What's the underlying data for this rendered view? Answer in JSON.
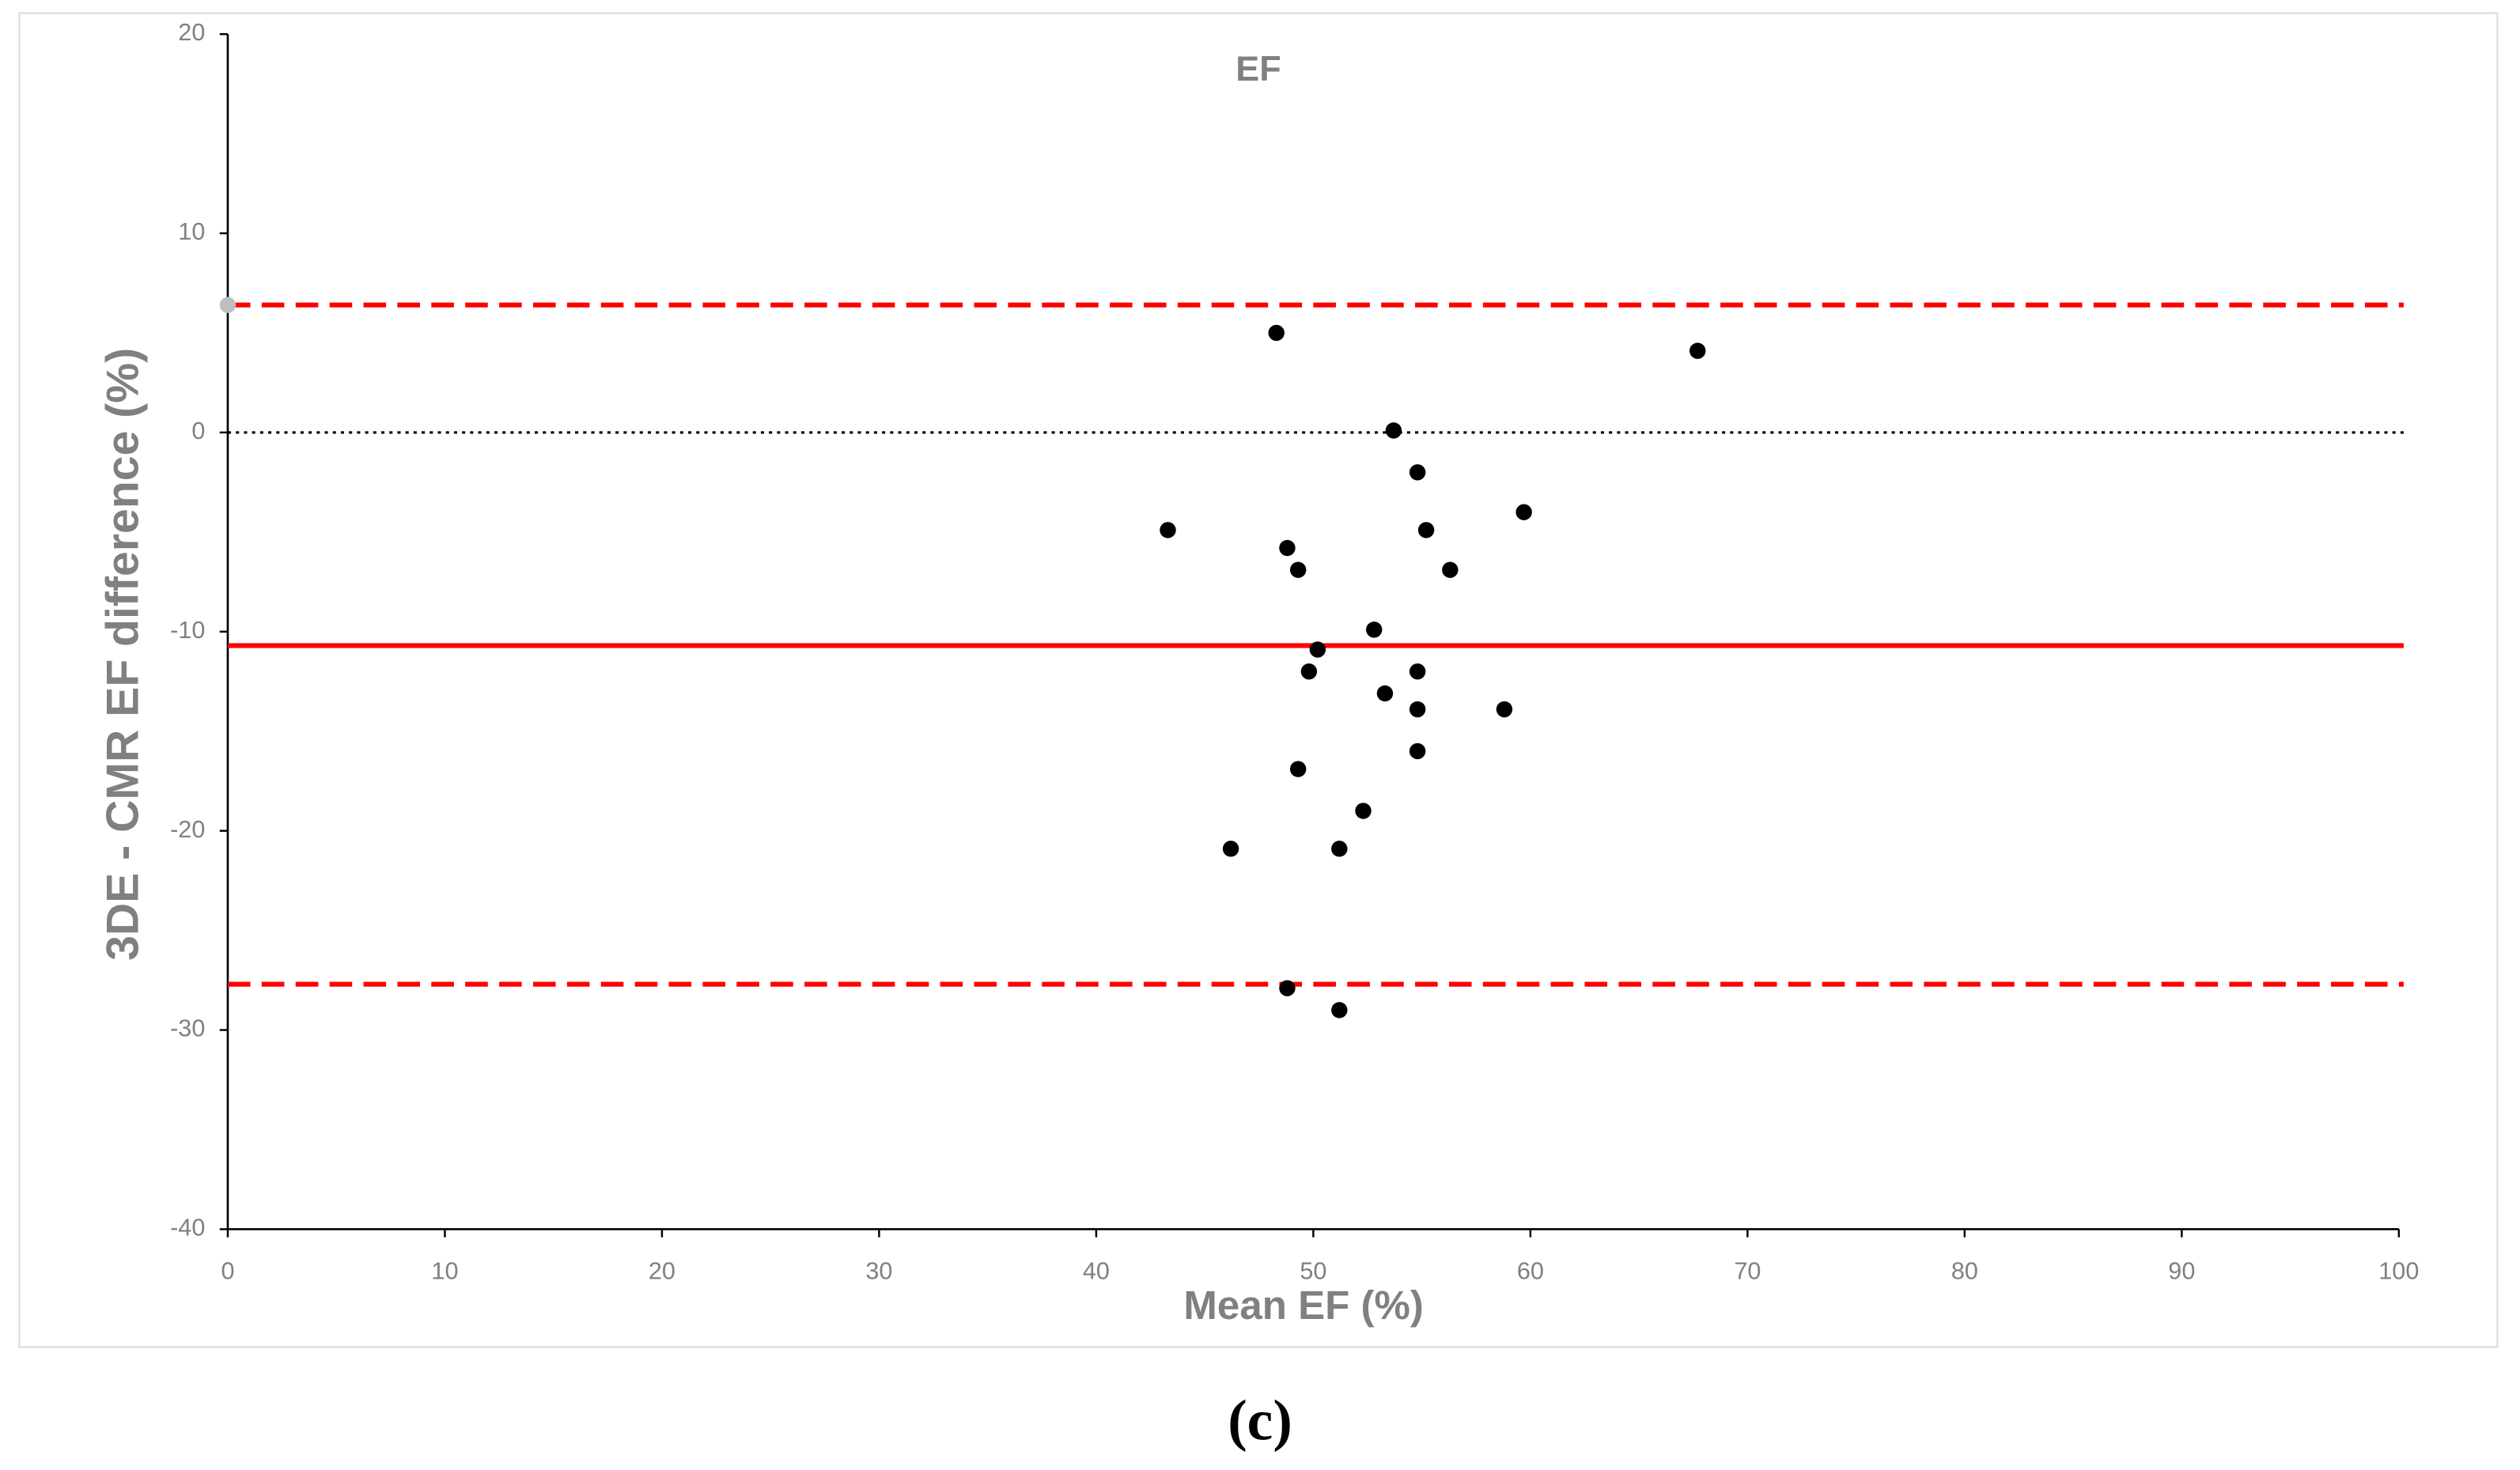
{
  "chart_data": {
    "type": "scatter",
    "title": "EF",
    "x_label": "Mean EF (%)",
    "y_label": "3DE - CMR EF difference (%)",
    "xlim": [
      0,
      100
    ],
    "xticks": [
      0,
      10,
      20,
      30,
      40,
      50,
      60,
      70,
      80,
      90,
      100
    ],
    "ylim": [
      -40,
      20
    ],
    "yticks": [
      -40,
      -30,
      -20,
      -10,
      0,
      10,
      20
    ],
    "series": [
      {
        "color": "#000000",
        "x": [
          48.3,
          67.7,
          53.7,
          54.8,
          59.7,
          43.3,
          55.2,
          48.8,
          49.3,
          56.3,
          52.8,
          50.2,
          49.8,
          54.8,
          53.3,
          54.8,
          58.8,
          54.8,
          49.3,
          52.3,
          46.2,
          51.2,
          48.8,
          51.2
        ],
        "values": [
          5.0,
          4.1,
          0.1,
          -2.0,
          -4.0,
          -4.9,
          -4.9,
          -5.8,
          -6.9,
          -6.9,
          -9.9,
          -10.9,
          -12.0,
          -12.0,
          -13.1,
          -13.9,
          -13.9,
          -16.0,
          -16.9,
          -19.0,
          -20.9,
          -20.9,
          -27.9,
          -29.0
        ]
      },
      {
        "color": "#bfbfbf",
        "x": [
          0
        ],
        "values": [
          6.4
        ]
      }
    ],
    "reference_lines": [
      {
        "value": 6.4,
        "color": "#ff0000",
        "style": "dashed"
      },
      {
        "value": 0,
        "color": "#000000",
        "style": "dotted"
      },
      {
        "value": -10.7,
        "color": "#ff0000",
        "style": "solid"
      },
      {
        "value": -27.7,
        "color": "#ff0000",
        "style": "dashed"
      }
    ]
  },
  "caption": "(c)"
}
